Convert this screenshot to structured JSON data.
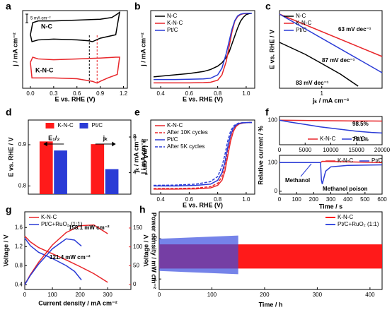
{
  "chart_data": [
    {
      "type": "line",
      "panel": "a",
      "xlabel": "E vs. RHE (V)",
      "ylabel": "j / mA cm⁻²",
      "xlim": [
        -0.1,
        1.25
      ],
      "xticks": [
        {
          "value": 0,
          "label": "0.0"
        },
        0.3,
        0.6,
        0.9,
        {
          "value": 1.2,
          "label": "1.2"
        }
      ],
      "ylim": [
        -25,
        20
      ],
      "yticks": [],
      "legend": "inline",
      "scale_bar": {
        "value": 5,
        "label": "5 mA cm⁻²"
      },
      "vlines": [
        {
          "x": 0.76,
          "color": "#000000"
        },
        {
          "x": 0.86,
          "color": "#e8262a"
        }
      ],
      "series": [
        {
          "name": "N-C",
          "color": "#000000",
          "x": [
            0.0,
            0.03,
            0.1,
            0.3,
            0.6,
            0.9,
            1.05,
            1.12,
            1.15,
            1.1,
            0.9,
            0.8,
            0.75,
            0.6,
            0.3,
            0.1,
            0.02,
            0.0
          ],
          "values": [
            6,
            13,
            14,
            14,
            14.5,
            15,
            16,
            18,
            19,
            6,
            4,
            2,
            2.5,
            3,
            3.5,
            3,
            2,
            6
          ]
        },
        {
          "name": "K-N-C",
          "color": "#e8262a",
          "x": [
            0.0,
            0.03,
            0.1,
            0.3,
            0.6,
            0.9,
            1.1,
            1.15,
            1.12,
            1.0,
            0.9,
            0.86,
            0.8,
            0.6,
            0.3,
            0.1,
            0.02,
            0.0
          ],
          "values": [
            -10,
            -7,
            -8,
            -8.5,
            -8,
            -7.5,
            -7,
            -7,
            -17,
            -19,
            -21,
            -22,
            -21,
            -19.5,
            -19,
            -19,
            -19,
            -10
          ]
        }
      ]
    },
    {
      "type": "line",
      "panel": "b",
      "xlabel": "E vs. RHE (V)",
      "ylabel": "j / mA cm⁻²",
      "xlim": [
        0.33,
        1.06
      ],
      "xticks": [
        0.4,
        0.6,
        0.8,
        {
          "value": 1,
          "label": "1.0"
        }
      ],
      "ylim": [
        -5.6,
        0.2
      ],
      "yticks": [],
      "legend": "upper left",
      "x": [
        0.35,
        0.4,
        0.5,
        0.6,
        0.7,
        0.75,
        0.8,
        0.83,
        0.86,
        0.88,
        0.9,
        0.92,
        0.94,
        0.96,
        0.98,
        1.0,
        1.02,
        1.04
      ],
      "series": [
        {
          "name": "N-C",
          "color": "#000000",
          "values": [
            -4.75,
            -4.7,
            -4.6,
            -4.5,
            -4.35,
            -4.2,
            -3.95,
            -3.7,
            -3.3,
            -2.9,
            -2.3,
            -1.7,
            -1.1,
            -0.6,
            -0.3,
            -0.1,
            -0.03,
            0
          ]
        },
        {
          "name": "K-N-C",
          "color": "#e8262a",
          "values": [
            -5.2,
            -5.2,
            -5.2,
            -5.2,
            -5.18,
            -5.15,
            -5.0,
            -4.6,
            -3.6,
            -2.5,
            -1.4,
            -0.6,
            -0.25,
            -0.1,
            -0.04,
            -0.01,
            0,
            0
          ]
        },
        {
          "name": "Pt/C",
          "color": "#2a3bd6",
          "values": [
            -4.95,
            -4.95,
            -4.95,
            -4.93,
            -4.9,
            -4.85,
            -4.6,
            -4.1,
            -3.0,
            -2.1,
            -1.2,
            -0.55,
            -0.2,
            -0.07,
            -0.02,
            0,
            0,
            0
          ]
        }
      ]
    },
    {
      "type": "line",
      "panel": "c",
      "xlabel": "jₖ / mA cm⁻²",
      "ylabel": "E vs. RHE / V",
      "xlog": true,
      "xlim": [
        0.4,
        3.7
      ],
      "xticks": [
        1
      ],
      "ylim": [
        0.84,
        0.95
      ],
      "yticks": [],
      "legend": "upper left",
      "annotations": [
        "63 mV dec⁻¹",
        "87 mV dec⁻¹",
        "83 mV dec⁻¹"
      ],
      "series": [
        {
          "name": "N-C",
          "color": "#000000",
          "x": [
            0.4,
            0.7,
            1,
            1.5,
            2.2
          ],
          "values": [
            0.905,
            0.888,
            0.875,
            0.86,
            0.843
          ]
        },
        {
          "name": "K-N-C",
          "color": "#e8262a",
          "x": [
            0.4,
            3.7
          ],
          "values": [
            0.945,
            0.885
          ]
        },
        {
          "name": "Pt/C",
          "color": "#2a3bd6",
          "x": [
            0.4,
            3.7
          ],
          "values": [
            0.945,
            0.862
          ]
        }
      ]
    },
    {
      "type": "bar",
      "panel": "d",
      "ylabel": "E vs. RHE / V",
      "y2label": "jₖ / mA cm⁻²",
      "categories": [
        "E₁/₂",
        "jₖ"
      ],
      "category_axes": [
        "y",
        "y2"
      ],
      "ylim": [
        0.78,
        0.96
      ],
      "yticks": [
        0.8,
        0.9
      ],
      "y2lim": [
        1.6,
        9.9
      ],
      "y2ticks": [
        4,
        8
      ],
      "legend": "upper center",
      "series": [
        {
          "name": "K-N-C",
          "color": "#ff1a1a",
          "values": [
            0.908,
            7.2
          ]
        },
        {
          "name": "Pt/C",
          "color": "#2a3bd6",
          "values": [
            0.886,
            4.4
          ]
        }
      ]
    },
    {
      "type": "line",
      "panel": "e",
      "xlabel": "E vs. RHE (V)",
      "ylabel": "j / mA cm⁻²",
      "ylabel2": "jₖ / mA cm⁻²",
      "xlim": [
        0.33,
        1.06
      ],
      "xticks": [
        0.4,
        0.6,
        0.8,
        {
          "value": 1,
          "label": "1.0"
        }
      ],
      "ylim": [
        -5.7,
        0.2
      ],
      "yticks": [],
      "legend": "upper left",
      "x": [
        0.35,
        0.5,
        0.65,
        0.75,
        0.8,
        0.83,
        0.85,
        0.87,
        0.89,
        0.91,
        0.93,
        0.95,
        0.98,
        1.02,
        1.04
      ],
      "series": [
        {
          "name": "K-N-C",
          "color": "#e8262a",
          "values": [
            -5.3,
            -5.3,
            -5.28,
            -5.2,
            -5.0,
            -4.6,
            -3.9,
            -2.7,
            -1.5,
            -0.7,
            -0.3,
            -0.12,
            -0.03,
            0,
            0
          ]
        },
        {
          "name": "After 10K cycles",
          "color": "#e8262a",
          "dash": true,
          "values": [
            -5.25,
            -5.25,
            -5.22,
            -5.1,
            -4.85,
            -4.3,
            -3.4,
            -2.2,
            -1.1,
            -0.5,
            -0.2,
            -0.08,
            -0.02,
            0,
            0
          ]
        },
        {
          "name": "Pt/C",
          "color": "#2a3bd6",
          "values": [
            -5.05,
            -5.05,
            -5.0,
            -4.9,
            -4.6,
            -4.0,
            -3.2,
            -2.0,
            -1.0,
            -0.45,
            -0.2,
            -0.07,
            -0.02,
            0,
            0
          ]
        },
        {
          "name": "After 5K cycles",
          "color": "#2a3bd6",
          "dash": true,
          "values": [
            -5.0,
            -4.98,
            -4.9,
            -4.7,
            -4.3,
            -3.5,
            -2.6,
            -1.5,
            -0.7,
            -0.3,
            -0.12,
            -0.04,
            -0.01,
            0,
            0
          ]
        }
      ]
    },
    {
      "type": "line",
      "panel": "f",
      "ylabel": "Relative current / %",
      "xlim": [
        0,
        20000
      ],
      "xticks": [
        0,
        5000,
        10000,
        15000,
        20000
      ],
      "ylim": [
        60,
        106
      ],
      "yticks": [
        100
      ],
      "legend": "lower left",
      "annotations": [
        "98.5%",
        "79.1%"
      ],
      "x": [
        0,
        2000,
        5000,
        8000,
        10000,
        12000,
        15000,
        18000,
        20000
      ],
      "series": [
        {
          "name": "K-N-C",
          "color": "#e8262a",
          "values": [
            100,
            99.8,
            99.5,
            99.2,
            99.1,
            98.9,
            98.7,
            98.6,
            98.5
          ]
        },
        {
          "name": "Pt/C",
          "color": "#2a3bd6",
          "values": [
            100,
            97,
            93,
            89,
            87,
            85,
            82,
            80,
            79.1
          ]
        }
      ]
    },
    {
      "type": "line",
      "xlabel": "Time / s",
      "xlim": [
        0,
        600
      ],
      "xticks": [
        0,
        100,
        200,
        300,
        400,
        500,
        600
      ],
      "ylim": [
        -10,
        125
      ],
      "yticks": [
        0,
        100
      ],
      "legend": "upper right",
      "annotations": [
        "Methanol",
        "Methanol poison"
      ],
      "series": [
        {
          "name": "K-N-C",
          "color": "#e8262a",
          "x": [
            0,
            240,
            250,
            600
          ],
          "values": [
            100,
            100,
            104,
            100
          ]
        },
        {
          "name": "Pt/C",
          "color": "#2a3bd6",
          "x": [
            0,
            240,
            245,
            250,
            270,
            300,
            400,
            600
          ],
          "values": [
            100,
            100,
            40,
            25,
            70,
            85,
            90,
            92
          ]
        }
      ]
    },
    {
      "type": "line",
      "panel": "g",
      "xlabel": "Current density / mA cm⁻²",
      "ylabel": "Voltage / V",
      "y2label": "Power density / mW cm⁻²",
      "y2color": "#e8262a",
      "xlim": [
        0,
        384
      ],
      "xticks": [
        0,
        100,
        200,
        300
      ],
      "ylim": [
        0.3,
        1.93
      ],
      "yticks": [
        0.4,
        0.8,
        1.2,
        1.6
      ],
      "y2lim": [
        -13,
        193
      ],
      "y2ticks": [
        0,
        50,
        100,
        150
      ],
      "legend": "upper left",
      "annotations": [
        "158.1 mW cm⁻²",
        "121.4 mW cm⁻²"
      ],
      "series": [
        {
          "name": "K-N-C",
          "color": "#e8262a",
          "x": [
            0,
            20,
            50,
            100,
            150,
            200,
            250,
            300
          ],
          "values": [
            1.42,
            1.3,
            1.18,
            1.05,
            0.92,
            0.78,
            0.632,
            0.45
          ]
        },
        {
          "name": "Pt/C+RuO₂ (1:1)",
          "color": "#2a3bd6",
          "x": [
            0,
            20,
            50,
            100,
            150,
            180,
            205
          ],
          "values": [
            1.38,
            1.22,
            1.08,
            0.95,
            0.8,
            0.68,
            0.5
          ]
        },
        {
          "color": "#e8262a",
          "axis": "y2",
          "x": [
            0,
            20,
            50,
            100,
            150,
            200,
            250,
            300
          ],
          "values": [
            0,
            26,
            59,
            105,
            138,
            156,
            158.1,
            135
          ]
        },
        {
          "color": "#2a3bd6",
          "axis": "y2",
          "x": [
            0,
            20,
            50,
            100,
            150,
            180,
            205
          ],
          "values": [
            0,
            24,
            54,
            95,
            121.4,
            118,
            102
          ]
        }
      ]
    },
    {
      "type": "band",
      "panel": "h",
      "xlabel": "Time / h",
      "ylabel": "Voltage / V",
      "xlim": [
        0,
        423
      ],
      "xticks": [
        0,
        100,
        200,
        300,
        400
      ],
      "ylim": [
        0.74,
        2.67
      ],
      "yticks": [
        1,
        2
      ],
      "legend": "upper right",
      "series": [
        {
          "name": "K-N-C",
          "color": "#ff1a1a",
          "x": [
            0,
            423
          ],
          "upper": [
            1.86,
            1.86
          ],
          "lower": [
            1.26,
            1.26
          ]
        },
        {
          "name": "Pt/C+RuO₂ (1:1)",
          "color": "#3b4fe0",
          "x": [
            0,
            150
          ],
          "upper": [
            2.0,
            2.08
          ],
          "lower": [
            1.2,
            1.12
          ]
        }
      ]
    }
  ]
}
